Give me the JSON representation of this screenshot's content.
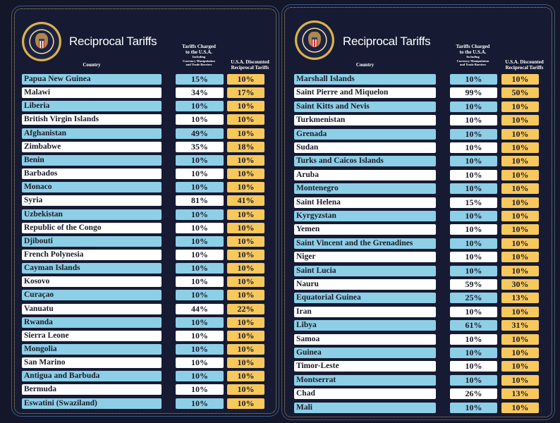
{
  "title": "Reciprocal Tariffs",
  "seal_text": "Seal of the President of the United States",
  "headers": {
    "country": "Country",
    "charged_line1": "Tariffs Charged",
    "charged_line2": "to the U.S.A.",
    "charged_sub1": "Including",
    "charged_sub2": "Currency Manipulation",
    "charged_sub3": "and Trade Barriers",
    "discounted_line1": "U.S.A. Discounted",
    "discounted_line2": "Reciprocal Tariffs"
  },
  "colors": {
    "background": "#161a33",
    "row_blue": "#8dcfe6",
    "row_white": "#ffffff",
    "discount": "#f7c85c"
  },
  "panels": [
    {
      "rows": [
        {
          "country": "Papua New Guinea",
          "charged": "15%",
          "discounted": "10%"
        },
        {
          "country": "Malawi",
          "charged": "34%",
          "discounted": "17%"
        },
        {
          "country": "Liberia",
          "charged": "10%",
          "discounted": "10%"
        },
        {
          "country": "British Virgin Islands",
          "charged": "10%",
          "discounted": "10%"
        },
        {
          "country": "Afghanistan",
          "charged": "49%",
          "discounted": "10%"
        },
        {
          "country": "Zimbabwe",
          "charged": "35%",
          "discounted": "18%"
        },
        {
          "country": "Benin",
          "charged": "10%",
          "discounted": "10%"
        },
        {
          "country": "Barbados",
          "charged": "10%",
          "discounted": "10%"
        },
        {
          "country": "Monaco",
          "charged": "10%",
          "discounted": "10%"
        },
        {
          "country": "Syria",
          "charged": "81%",
          "discounted": "41%"
        },
        {
          "country": "Uzbekistan",
          "charged": "10%",
          "discounted": "10%"
        },
        {
          "country": "Republic of the Congo",
          "charged": "10%",
          "discounted": "10%"
        },
        {
          "country": "Djibouti",
          "charged": "10%",
          "discounted": "10%"
        },
        {
          "country": "French Polynesia",
          "charged": "10%",
          "discounted": "10%"
        },
        {
          "country": "Cayman Islands",
          "charged": "10%",
          "discounted": "10%"
        },
        {
          "country": "Kosovo",
          "charged": "10%",
          "discounted": "10%"
        },
        {
          "country": "Curaçao",
          "charged": "10%",
          "discounted": "10%"
        },
        {
          "country": "Vanuatu",
          "charged": "44%",
          "discounted": "22%"
        },
        {
          "country": "Rwanda",
          "charged": "10%",
          "discounted": "10%"
        },
        {
          "country": "Sierra Leone",
          "charged": "10%",
          "discounted": "10%"
        },
        {
          "country": "Mongolia",
          "charged": "10%",
          "discounted": "10%"
        },
        {
          "country": "San Marino",
          "charged": "10%",
          "discounted": "10%"
        },
        {
          "country": "Antigua and Barbuda",
          "charged": "10%",
          "discounted": "10%"
        },
        {
          "country": "Bermuda",
          "charged": "10%",
          "discounted": "10%"
        },
        {
          "country": "Eswatini (Swaziland)",
          "charged": "10%",
          "discounted": "10%"
        }
      ]
    },
    {
      "rows": [
        {
          "country": "Marshall Islands",
          "charged": "10%",
          "discounted": "10%"
        },
        {
          "country": "Saint Pierre and Miquelon",
          "charged": "99%",
          "discounted": "50%"
        },
        {
          "country": "Saint Kitts and Nevis",
          "charged": "10%",
          "discounted": "10%"
        },
        {
          "country": "Turkmenistan",
          "charged": "10%",
          "discounted": "10%"
        },
        {
          "country": "Grenada",
          "charged": "10%",
          "discounted": "10%"
        },
        {
          "country": "Sudan",
          "charged": "10%",
          "discounted": "10%"
        },
        {
          "country": "Turks and Caicos Islands",
          "charged": "10%",
          "discounted": "10%"
        },
        {
          "country": "Aruba",
          "charged": "10%",
          "discounted": "10%"
        },
        {
          "country": "Montenegro",
          "charged": "10%",
          "discounted": "10%"
        },
        {
          "country": "Saint Helena",
          "charged": "15%",
          "discounted": "10%"
        },
        {
          "country": "Kyrgyzstan",
          "charged": "10%",
          "discounted": "10%"
        },
        {
          "country": "Yemen",
          "charged": "10%",
          "discounted": "10%"
        },
        {
          "country": "Saint Vincent and the Grenadines",
          "charged": "10%",
          "discounted": "10%"
        },
        {
          "country": "Niger",
          "charged": "10%",
          "discounted": "10%"
        },
        {
          "country": "Saint Lucia",
          "charged": "10%",
          "discounted": "10%"
        },
        {
          "country": "Nauru",
          "charged": "59%",
          "discounted": "30%"
        },
        {
          "country": "Equatorial Guinea",
          "charged": "25%",
          "discounted": "13%"
        },
        {
          "country": "Iran",
          "charged": "10%",
          "discounted": "10%"
        },
        {
          "country": "Libya",
          "charged": "61%",
          "discounted": "31%"
        },
        {
          "country": "Samoa",
          "charged": "10%",
          "discounted": "10%"
        },
        {
          "country": "Guinea",
          "charged": "10%",
          "discounted": "10%"
        },
        {
          "country": "Timor-Leste",
          "charged": "10%",
          "discounted": "10%"
        },
        {
          "country": "Montserrat",
          "charged": "10%",
          "discounted": "10%"
        },
        {
          "country": "Chad",
          "charged": "26%",
          "discounted": "13%"
        },
        {
          "country": "Mali",
          "charged": "10%",
          "discounted": "10%"
        }
      ]
    }
  ]
}
